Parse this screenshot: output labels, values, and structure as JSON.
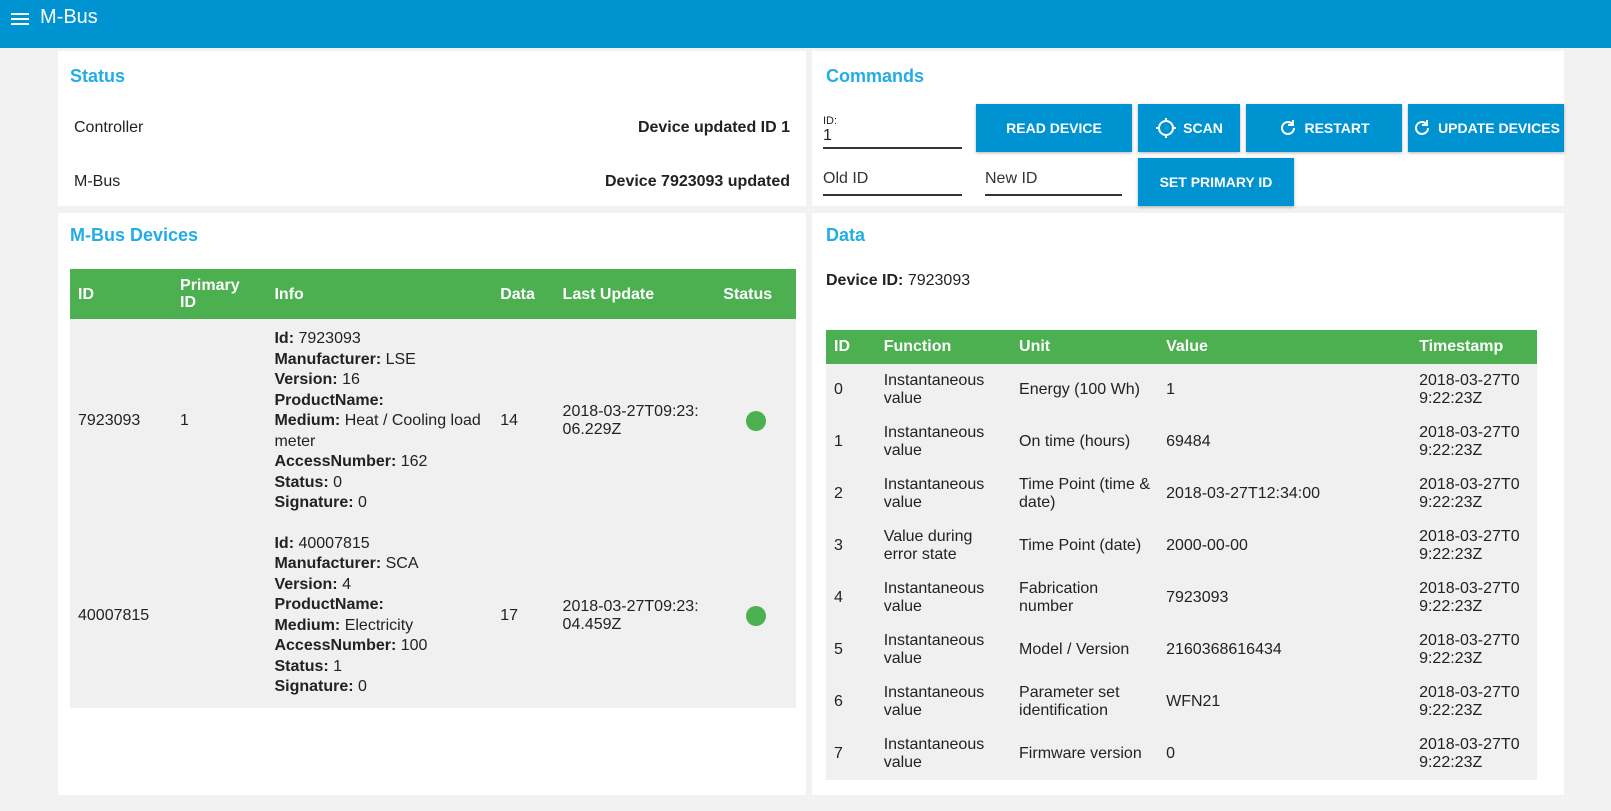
{
  "header": {
    "title": "M-Bus"
  },
  "status": {
    "title": "Status",
    "rows": [
      {
        "label": "Controller",
        "value": "Device updated ID 1"
      },
      {
        "label": "M-Bus",
        "value": "Device 7923093 updated"
      }
    ]
  },
  "commands": {
    "title": "Commands",
    "id_label": "ID:",
    "id_value": "1",
    "buttons": [
      "READ DEVICE",
      "SCAN",
      "RESTART",
      "UPDATE DEVICES"
    ],
    "old_id": "Old ID",
    "new_id": "New ID",
    "set_primary": "SET PRIMARY ID"
  },
  "devices": {
    "title": "M-Bus Devices",
    "columns": [
      "ID",
      "Primary ID",
      "Info",
      "Data",
      "Last Update",
      "Status"
    ],
    "rows": [
      {
        "id": "7923093",
        "primary_id": "1",
        "info": [
          [
            "Id:",
            "7923093"
          ],
          [
            "Manufacturer:",
            "LSE"
          ],
          [
            "Version:",
            "16"
          ],
          [
            "ProductName:"
          ],
          [
            "Medium:",
            "Heat / Cooling load meter"
          ],
          [
            "AccessNumber:",
            "162"
          ],
          [
            "Status:",
            "0"
          ],
          [
            "Signature:",
            "0"
          ]
        ],
        "data": "14",
        "last_update": "2018-03-27T09:23:06.229Z"
      },
      {
        "id": "40007815",
        "info": [
          [
            "Id:",
            "40007815"
          ],
          [
            "Manufacturer:",
            "SCA"
          ],
          [
            "Version:",
            "4"
          ],
          [
            "ProductName:"
          ],
          [
            "Medium:",
            "Electricity"
          ],
          [
            "AccessNumber:",
            "100"
          ],
          [
            "Status:",
            "1"
          ],
          [
            "Signature:",
            "0"
          ]
        ],
        "data": "17",
        "last_update": "2018-03-27T09:23:04.459Z"
      }
    ]
  },
  "data": {
    "title": "Data",
    "device_label": "Device ID:",
    "device_id": "7923093",
    "columns": [
      "ID",
      "Function",
      "Unit",
      "Value",
      "Timestamp"
    ],
    "rows": [
      [
        "0",
        "Instantaneous value",
        "Energy (100 Wh)",
        "1",
        "2018-03-27T09:22:23Z"
      ],
      [
        "1",
        "Instantaneous value",
        "On time (hours)",
        "69484",
        "2018-03-27T09:22:23Z"
      ],
      [
        "2",
        "Instantaneous value",
        "Time Point (time & date)",
        "2018-03-27T12:34:00",
        "2018-03-27T09:22:23Z"
      ],
      [
        "3",
        "Value during error state",
        "Time Point (date)",
        "2000-00-00",
        "2018-03-27T09:22:23Z"
      ],
      [
        "4",
        "Instantaneous value",
        "Fabrication number",
        "7923093",
        "2018-03-27T09:22:23Z"
      ],
      [
        "5",
        "Instantaneous value",
        "Model / Version",
        "2160368616434",
        "2018-03-27T09:22:23Z"
      ],
      [
        "6",
        "Instantaneous value",
        "Parameter set identification",
        "WFN21",
        "2018-03-27T09:22:23Z"
      ],
      [
        "7",
        "Instantaneous value",
        "Firmware version",
        "0",
        "2018-03-27T09:22:23Z"
      ]
    ]
  }
}
